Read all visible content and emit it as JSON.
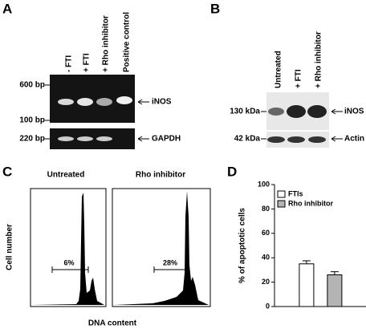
{
  "panels": {
    "A": {
      "letter": "A",
      "lanes": [
        "- FTI",
        "+ FTI",
        "+ Rho inhibitor",
        "Positive control"
      ],
      "markers": [
        "600 bp",
        "100 bp",
        "220 bp"
      ],
      "bands": [
        "iNOS",
        "GAPDH"
      ]
    },
    "B": {
      "letter": "B",
      "lanes": [
        "Untreated",
        "+ FTI",
        "+ Rho inhibitor"
      ],
      "markers": [
        "130 kDa",
        "42 kDa"
      ],
      "bands": [
        "iNOS",
        "Actin"
      ]
    },
    "C": {
      "letter": "C",
      "titles": [
        "Untreated",
        "Rho inhibitor"
      ],
      "y_label": "Cell number",
      "x_label": "DNA content",
      "percentages": [
        "6%",
        "28%"
      ]
    },
    "D": {
      "letter": "D"
    }
  },
  "chart_data": {
    "type": "bar",
    "y_label": "% of apoptotic cells",
    "categories": [
      null
    ],
    "series": [
      {
        "name": "FTIs",
        "color": "#ffffff",
        "values": [
          35
        ],
        "errors": [
          2.5
        ]
      },
      {
        "name": "Rho inhibitor",
        "color": "#b4b4b4",
        "values": [
          26
        ],
        "errors": [
          2.5
        ]
      }
    ],
    "ylim": [
      0,
      100
    ],
    "yticks": [
      0,
      20,
      40,
      60,
      80,
      100
    ],
    "legend": "upper left"
  }
}
